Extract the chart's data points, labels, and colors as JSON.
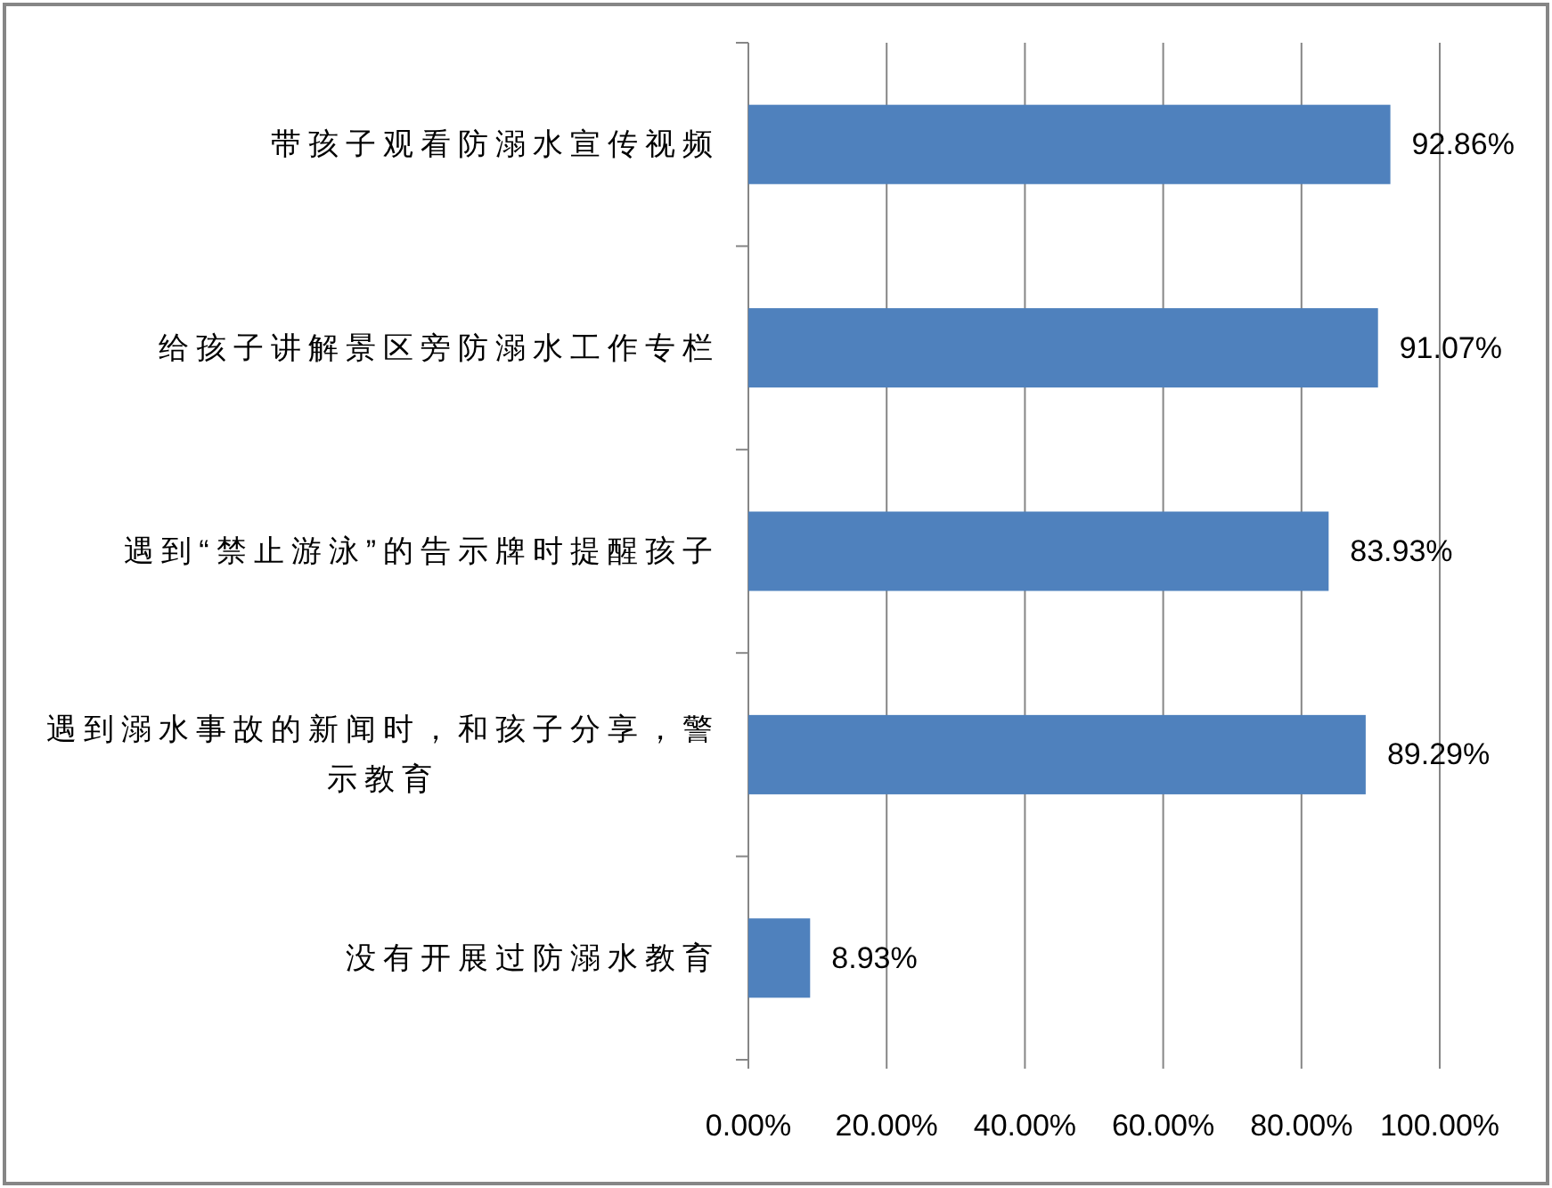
{
  "chart_data": {
    "type": "bar",
    "orientation": "horizontal",
    "categories": [
      "带孩子观看防溺水宣传视频",
      "给孩子讲解景区旁防溺水工作专栏",
      "遇到“禁止游泳”的告示牌时提醒孩子",
      "遇到溺水事故的新闻时，和孩子分享，警示教育",
      "没有开展过防溺水教育"
    ],
    "values": [
      92.86,
      91.07,
      83.93,
      89.29,
      8.93
    ],
    "color": "#4f81bd",
    "value_labels": [
      "92.86%",
      "91.07%",
      "83.93%",
      "89.29%",
      "8.93%"
    ],
    "xlim": [
      0,
      100
    ],
    "xticks": [
      {
        "value": 0,
        "label": "0.00%"
      },
      {
        "value": 20,
        "label": "20.00%"
      },
      {
        "value": 40,
        "label": "40.00%"
      },
      {
        "value": 60,
        "label": "60.00%"
      },
      {
        "value": 80,
        "label": "80.00%"
      },
      {
        "value": 100,
        "label": "100.00%"
      }
    ],
    "grid": "x"
  }
}
